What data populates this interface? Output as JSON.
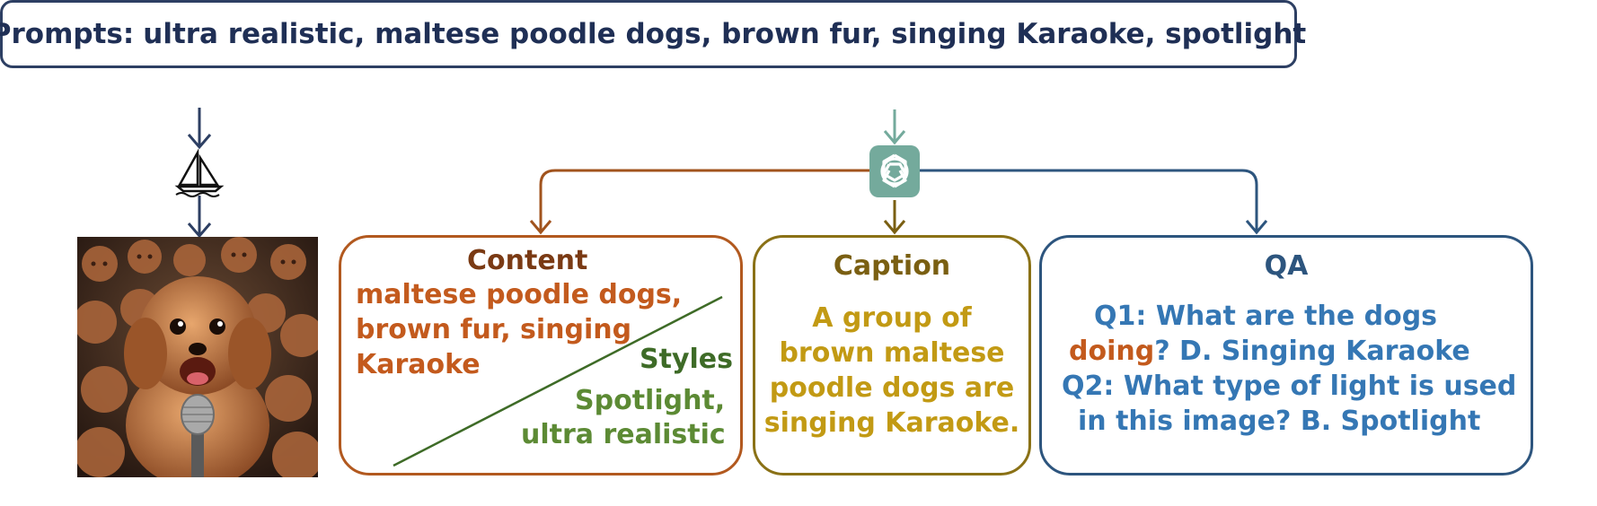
{
  "prompt": {
    "label": "Prompts:",
    "text": "ultra realistic, maltese poodle dogs, brown fur, singing Karaoke, spotlight"
  },
  "generated_image": {
    "icon": "dog-karaoke-image"
  },
  "content": {
    "title": "Content",
    "lines": [
      "maltese poodle dogs,",
      "brown fur, singing",
      "Karaoke"
    ],
    "styles_title": "Styles",
    "styles_lines": [
      "Spotlight,",
      "ultra realistic"
    ]
  },
  "caption": {
    "title": "Caption",
    "lines": [
      "A group of",
      "brown maltese",
      "poodle dogs are",
      "singing Karaoke."
    ]
  },
  "qa": {
    "title": "QA",
    "q1_a": "Q1: What are the dogs",
    "q1_b_highlight": "doing",
    "q1_b_rest": "? D. Singing Karaoke",
    "q2_a": "Q2: What type of light is used",
    "q2_b": "in this image?  B. Spotlight"
  },
  "colors": {
    "navy": "#2d3f63",
    "content": "#b2591f",
    "styles": "#4f7a2e",
    "caption": "#8a7116",
    "caption_text": "#c29a14",
    "qa": "#2d557e",
    "qa_text": "#3577b4",
    "openai_bg": "#74aa9c"
  }
}
